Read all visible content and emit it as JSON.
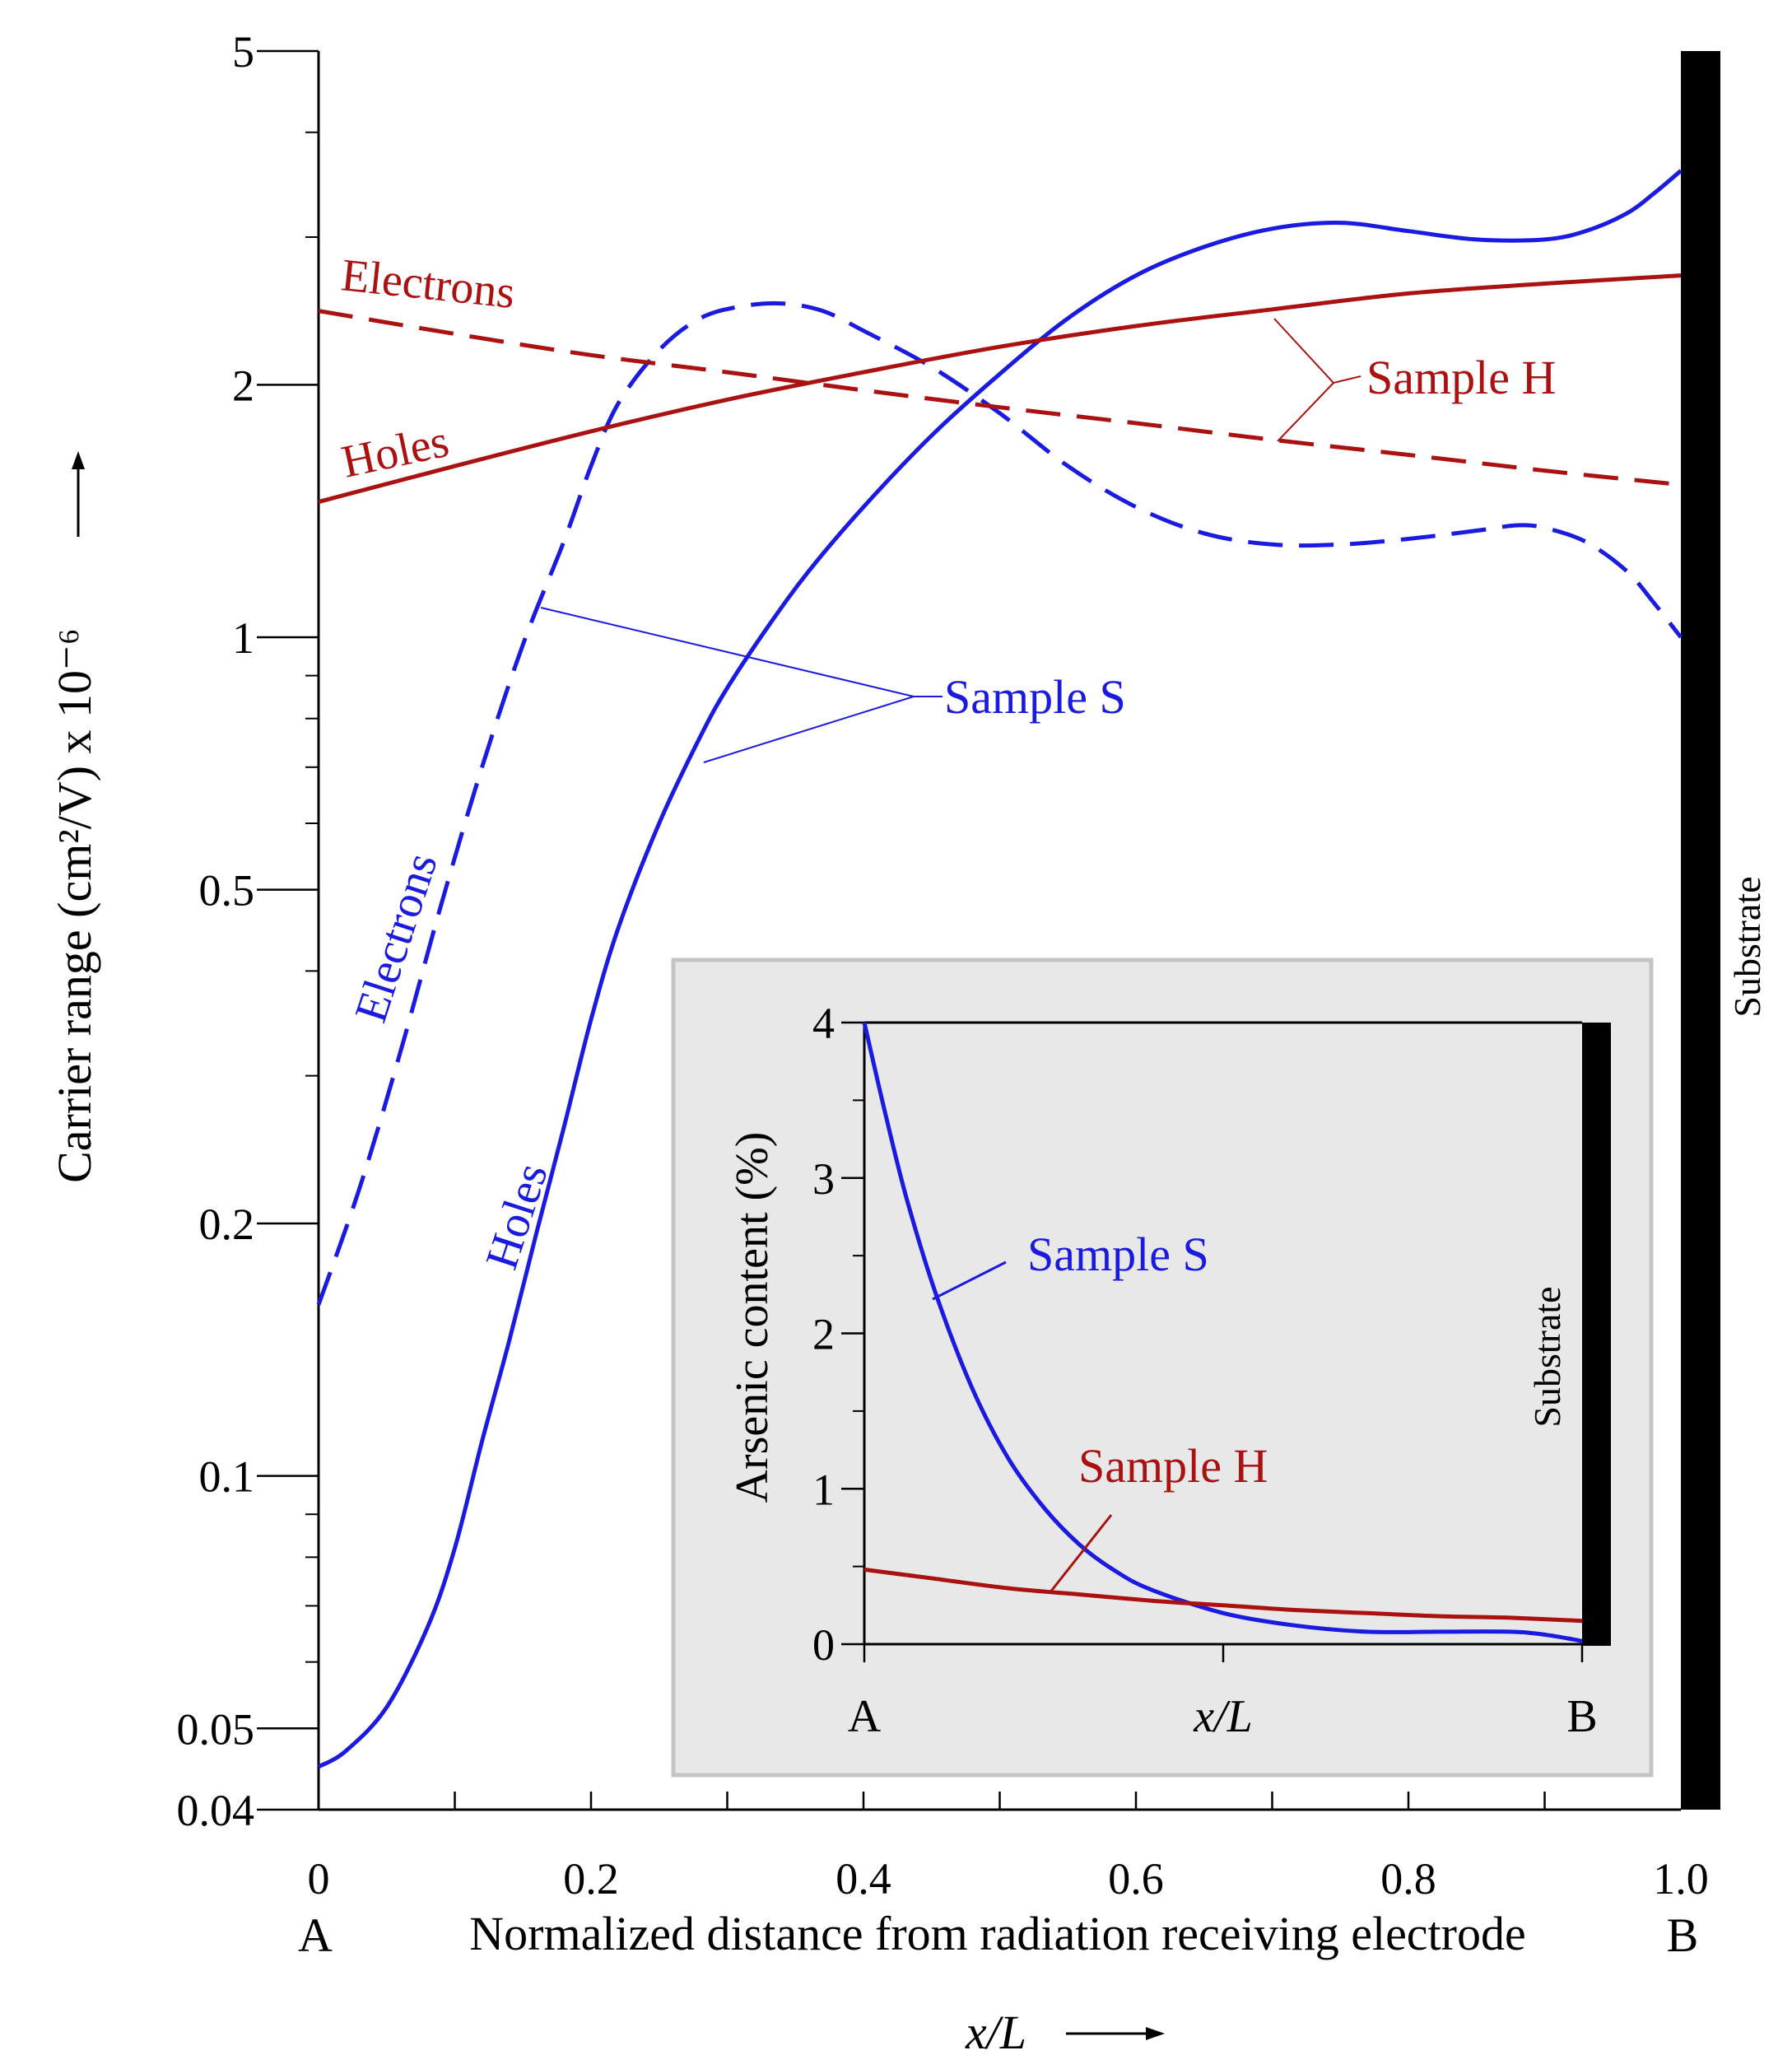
{
  "colors": {
    "sample_s": "#1a1ae0",
    "sample_h": "#aa1111",
    "axis": "#000000",
    "inset_bg": "#e8e8e8",
    "inset_border": "#c4c4c4"
  },
  "chart_data": [
    {
      "id": "main",
      "type": "line",
      "yscale": "log",
      "xlim": [
        0,
        1.0
      ],
      "ylim": [
        0.04,
        5
      ],
      "x_ticks": [
        0,
        0.2,
        0.4,
        0.6,
        0.8,
        1.0
      ],
      "x_tick_labels": [
        "0",
        "0.2",
        "0.4",
        "0.6",
        "0.8",
        "1.0"
      ],
      "y_ticks": [
        0.04,
        0.05,
        0.1,
        0.2,
        0.5,
        1,
        2,
        5
      ],
      "y_tick_labels": [
        "0.04",
        "0.05",
        "0.1",
        "0.2",
        "0.5",
        "1",
        "2",
        "5"
      ],
      "xlabel_left": "A",
      "xlabel": "Normalized distance from radiation receiving electrode",
      "xlabel_right": "B",
      "xlabel_sub": "x/L",
      "ylabel": "Carrier range (cm²/V)   x 10⁻⁶",
      "substrate_label": "Substrate",
      "series": [
        {
          "name": "Sample S Holes",
          "sample": "S",
          "carrier": "Holes",
          "style": "solid",
          "x": [
            0,
            0.02,
            0.05,
            0.08,
            0.1,
            0.12,
            0.14,
            0.16,
            0.18,
            0.2,
            0.22,
            0.25,
            0.28,
            0.3,
            0.33,
            0.36,
            0.4,
            0.45,
            0.5,
            0.55,
            0.6,
            0.65,
            0.7,
            0.75,
            0.8,
            0.85,
            0.9,
            0.93,
            0.96,
            0.98,
            1.0
          ],
          "y": [
            0.045,
            0.047,
            0.053,
            0.066,
            0.082,
            0.11,
            0.145,
            0.195,
            0.26,
            0.35,
            0.45,
            0.6,
            0.76,
            0.87,
            1.03,
            1.2,
            1.43,
            1.74,
            2.06,
            2.4,
            2.7,
            2.92,
            3.07,
            3.12,
            3.05,
            2.98,
            2.98,
            3.05,
            3.2,
            3.38,
            3.6
          ]
        },
        {
          "name": "Sample S Electrons",
          "sample": "S",
          "carrier": "Electrons",
          "style": "dashed",
          "x": [
            0,
            0.03,
            0.06,
            0.09,
            0.12,
            0.15,
            0.18,
            0.2,
            0.22,
            0.25,
            0.28,
            0.31,
            0.34,
            0.37,
            0.4,
            0.45,
            0.5,
            0.55,
            0.6,
            0.65,
            0.7,
            0.75,
            0.8,
            0.85,
            0.88,
            0.9,
            0.93,
            0.96,
            0.98,
            1.0
          ],
          "y": [
            0.16,
            0.22,
            0.32,
            0.48,
            0.7,
            0.98,
            1.3,
            1.6,
            1.9,
            2.2,
            2.4,
            2.48,
            2.5,
            2.45,
            2.32,
            2.1,
            1.85,
            1.6,
            1.43,
            1.33,
            1.29,
            1.29,
            1.31,
            1.34,
            1.36,
            1.35,
            1.3,
            1.2,
            1.1,
            1.0
          ]
        },
        {
          "name": "Sample H Holes",
          "sample": "H",
          "carrier": "Holes",
          "style": "solid",
          "x": [
            0,
            0.1,
            0.2,
            0.3,
            0.4,
            0.5,
            0.6,
            0.7,
            0.8,
            0.9,
            1.0
          ],
          "y": [
            1.45,
            1.6,
            1.76,
            1.92,
            2.07,
            2.22,
            2.35,
            2.46,
            2.57,
            2.64,
            2.7
          ]
        },
        {
          "name": "Sample H Electrons",
          "sample": "H",
          "carrier": "Electrons",
          "style": "dashed",
          "x": [
            0,
            0.1,
            0.2,
            0.3,
            0.4,
            0.5,
            0.6,
            0.7,
            0.8,
            0.9,
            1.0
          ],
          "y": [
            2.45,
            2.3,
            2.17,
            2.07,
            1.97,
            1.88,
            1.8,
            1.72,
            1.65,
            1.58,
            1.52
          ]
        }
      ],
      "annotations": {
        "sample_h": "Sample H",
        "sample_s": "Sample S",
        "h_electrons": "Electrons",
        "h_holes": "Holes",
        "s_electrons": "Electrons",
        "s_holes": "Holes"
      }
    },
    {
      "id": "inset",
      "type": "line",
      "xlim": [
        0,
        1.0
      ],
      "ylim": [
        0,
        4
      ],
      "y_ticks": [
        0,
        1,
        2,
        3,
        4
      ],
      "y_tick_labels": [
        "0",
        "1",
        "2",
        "3",
        "4"
      ],
      "x_tick_labels": [
        "A",
        "x/L",
        "B"
      ],
      "ylabel": "Arsenic content (%)",
      "substrate_label": "Substrate",
      "series": [
        {
          "name": "Sample S",
          "x": [
            0,
            0.03,
            0.06,
            0.1,
            0.15,
            0.2,
            0.25,
            0.3,
            0.35,
            0.4,
            0.5,
            0.6,
            0.7,
            0.8,
            0.9,
            0.95,
            1.0
          ],
          "y": [
            4.0,
            3.4,
            2.85,
            2.25,
            1.65,
            1.2,
            0.88,
            0.64,
            0.47,
            0.35,
            0.2,
            0.12,
            0.08,
            0.08,
            0.08,
            0.06,
            0.02
          ]
        },
        {
          "name": "Sample H",
          "x": [
            0,
            0.1,
            0.2,
            0.3,
            0.4,
            0.5,
            0.6,
            0.7,
            0.8,
            0.9,
            1.0
          ],
          "y": [
            0.48,
            0.42,
            0.36,
            0.32,
            0.28,
            0.25,
            0.22,
            0.2,
            0.18,
            0.17,
            0.15
          ]
        }
      ],
      "annotations": {
        "sample_s": "Sample S",
        "sample_h": "Sample H"
      }
    }
  ]
}
